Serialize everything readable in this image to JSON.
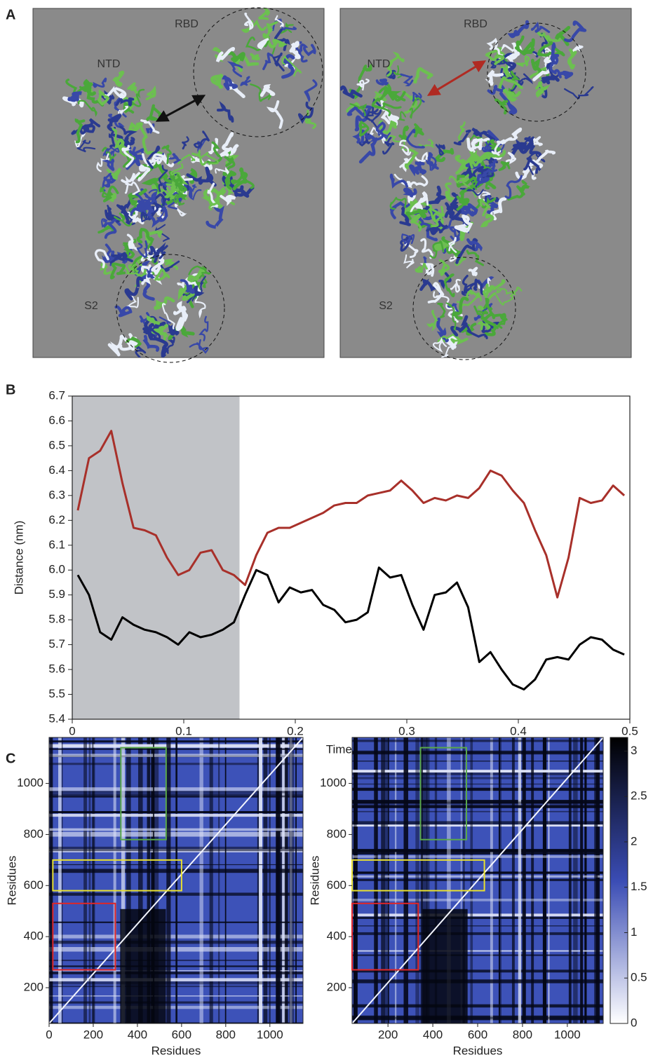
{
  "panels": {
    "a": "A",
    "b": "B",
    "c": "C"
  },
  "structures": [
    {
      "rbd": "RBD",
      "ntd": "NTD",
      "s2": "S2"
    },
    {
      "rbd": "RBD",
      "ntd": "NTD",
      "s2": "S2"
    }
  ],
  "chart_data": [
    {
      "type": "line",
      "xlabel": "Time (μs)",
      "ylabel": "Distance (nm)",
      "xlim": [
        0,
        0.5
      ],
      "ylim": [
        5.4,
        6.7
      ],
      "xticks": [
        0,
        0.1,
        0.2,
        0.3,
        0.4,
        0.5
      ],
      "yticks": [
        5.4,
        5.5,
        5.6,
        5.7,
        5.8,
        5.9,
        {
          "value": 6,
          "label": "6.0"
        },
        6.1,
        6.2,
        6.3,
        6.4,
        6.5,
        6.6,
        6.7
      ],
      "highlight": {
        "xlim": [
          0,
          0.15
        ],
        "color": "#c1c3c7"
      },
      "x": [
        0.005,
        0.015,
        0.025,
        0.035,
        0.045,
        0.055,
        0.065,
        0.075,
        0.085,
        0.095,
        0.105,
        0.115,
        0.125,
        0.135,
        0.145,
        0.155,
        0.165,
        0.175,
        0.185,
        0.195,
        0.205,
        0.215,
        0.225,
        0.235,
        0.245,
        0.255,
        0.265,
        0.275,
        0.285,
        0.295,
        0.305,
        0.315,
        0.325,
        0.335,
        0.345,
        0.355,
        0.365,
        0.375,
        0.385,
        0.395,
        0.405,
        0.415,
        0.425,
        0.435,
        0.445,
        0.455,
        0.465,
        0.475,
        0.485,
        0.495
      ],
      "series": [
        {
          "color": "#a8302a",
          "values": [
            6.24,
            6.45,
            6.48,
            6.56,
            6.35,
            6.17,
            6.16,
            6.14,
            6.05,
            5.98,
            6.0,
            6.07,
            6.08,
            6.0,
            5.98,
            5.94,
            6.06,
            6.15,
            6.17,
            6.17,
            6.19,
            6.21,
            6.23,
            6.26,
            6.27,
            6.27,
            6.3,
            6.31,
            6.32,
            6.36,
            6.32,
            6.27,
            6.29,
            6.28,
            6.3,
            6.29,
            6.33,
            6.4,
            6.38,
            6.32,
            6.27,
            6.16,
            6.06,
            5.89,
            6.05,
            6.29,
            6.27,
            6.28,
            6.34,
            6.3
          ]
        },
        {
          "color": "#000000",
          "values": [
            5.98,
            5.9,
            5.75,
            5.72,
            5.81,
            5.78,
            5.76,
            5.75,
            5.73,
            5.7,
            5.75,
            5.73,
            5.74,
            5.76,
            5.79,
            5.9,
            6.0,
            5.98,
            5.87,
            5.93,
            5.91,
            5.92,
            5.86,
            5.84,
            5.79,
            5.8,
            5.83,
            6.01,
            5.97,
            5.98,
            5.86,
            5.76,
            5.9,
            5.91,
            5.95,
            5.85,
            5.63,
            5.67,
            5.6,
            5.54,
            5.52,
            5.56,
            5.64,
            5.65,
            5.64,
            5.7,
            5.73,
            5.72,
            5.68,
            5.66
          ]
        }
      ]
    },
    {
      "type": "heatmap",
      "xlabel": "Residues",
      "ylabel": "Residues",
      "xlim": [
        0,
        1150
      ],
      "ylim": [
        60,
        1180
      ],
      "xticks": [
        0,
        200,
        400,
        600,
        800,
        1000
      ],
      "yticks": [
        200,
        400,
        600,
        800,
        1000
      ],
      "boxes": [
        {
          "color": "#e02626",
          "xlim": [
            17,
            300
          ],
          "ylim": [
            270,
            530
          ]
        },
        {
          "color": "#e8e030",
          "xlim": [
            17,
            600
          ],
          "ylim": [
            580,
            700
          ]
        },
        {
          "color": "#5aa84a",
          "xlim": [
            325,
            530
          ],
          "ylim": [
            780,
            1140
          ]
        }
      ]
    },
    {
      "type": "heatmap",
      "xlabel": "Residues",
      "ylabel": "Residues",
      "xlim": [
        40,
        1160
      ],
      "ylim": [
        60,
        1180
      ],
      "xticks": [
        200,
        400,
        600,
        800,
        1000
      ],
      "yticks": [
        200,
        400,
        600,
        800,
        1000
      ],
      "boxes": [
        {
          "color": "#e02626",
          "xlim": [
            40,
            335
          ],
          "ylim": [
            270,
            530
          ]
        },
        {
          "color": "#e8e030",
          "xlim": [
            40,
            630
          ],
          "ylim": [
            580,
            700
          ]
        },
        {
          "color": "#5aa84a",
          "xlim": [
            345,
            550
          ],
          "ylim": [
            780,
            1140
          ]
        }
      ],
      "colorbar": {
        "ylim": [
          0,
          3.15
        ],
        "yticks": [
          0,
          0.5,
          1,
          1.5,
          2,
          2.5,
          3
        ],
        "colors": [
          "#ffffff",
          "#3a4cb4",
          "#000000"
        ]
      }
    }
  ]
}
